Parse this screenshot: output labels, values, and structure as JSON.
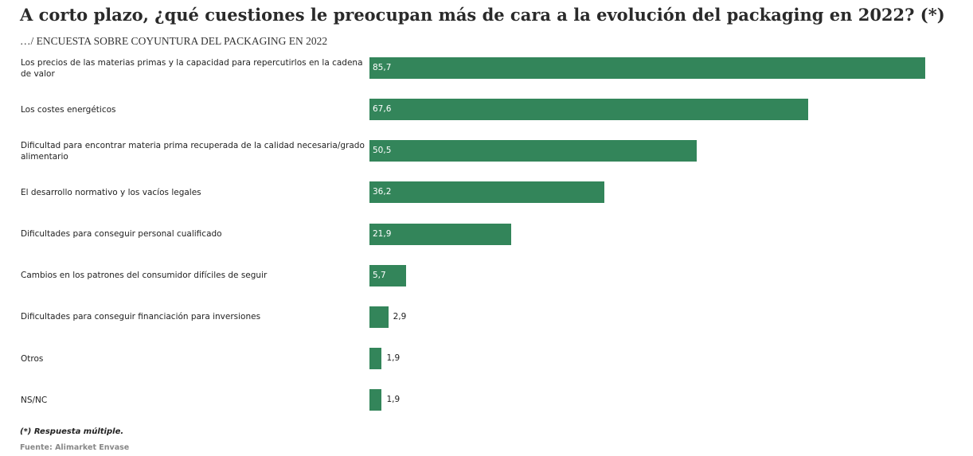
{
  "chart_data": {
    "type": "bar",
    "orientation": "horizontal",
    "title": "A corto plazo, ¿qué cuestiones le preocupan más de cara a la evolución del packaging en 2022? (*)",
    "subtitle": "…/ ENCUESTA SOBRE COYUNTURA DEL PACKAGING EN 2022",
    "categories": [
      "Los precios de las materias primas y la capacidad para repercutirlos en la cadena de valor",
      "Los costes energéticos",
      "Dificultad para encontrar materia prima recuperada de la calidad necesaria/grado alimentario",
      "El desarrollo normativo y los vacíos legales",
      "Dificultades para conseguir personal cualificado",
      "Cambios en los patrones del consumidor difíciles de seguir",
      "Dificultades para conseguir financiación para inversiones",
      "Otros",
      "NS/NC"
    ],
    "values": [
      85.7,
      67.6,
      50.5,
      36.2,
      21.9,
      5.7,
      2.9,
      1.9,
      1.9
    ],
    "value_labels": [
      "85,7",
      "67,6",
      "50,5",
      "36,2",
      "21,9",
      "5,7",
      "2,9",
      "1,9",
      "1,9"
    ],
    "color": "#33855a",
    "note": "(*) Respuesta múltiple.",
    "source": "Fuente: Alimarket Envase"
  }
}
